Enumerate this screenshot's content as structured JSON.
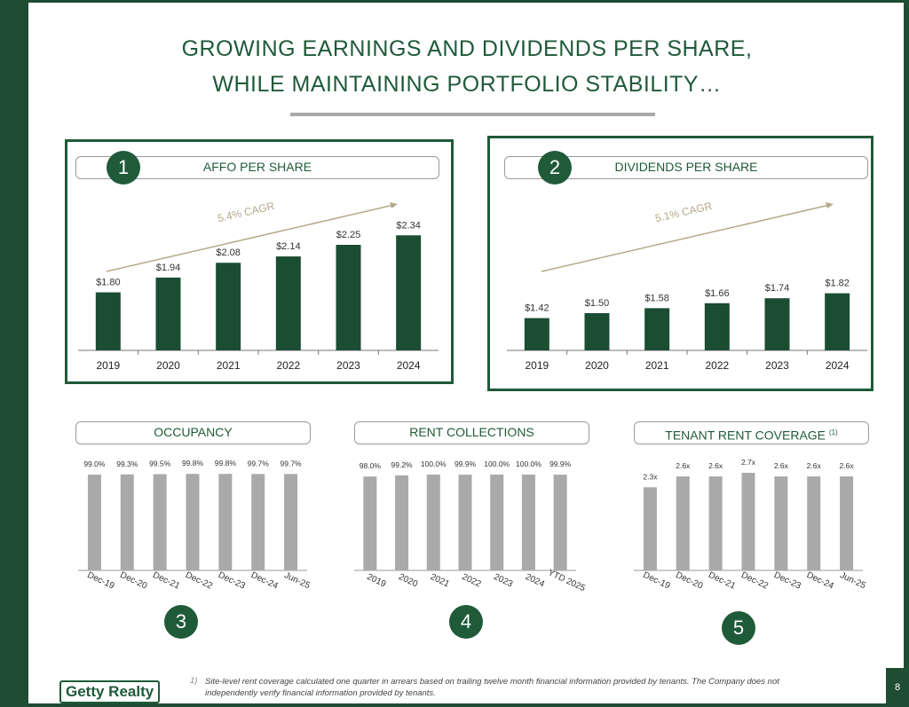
{
  "header": {
    "title_line1": "GROWING EARNINGS AND DIVIDENDS PER SHARE,",
    "title_line2": "WHILE MAINTAINING PORTFOLIO STABILITY…"
  },
  "footer": {
    "footnote_marker": "1)",
    "footnote": "Site-level rent coverage calculated one quarter in arrears based on trailing twelve month financial information provided by tenants.  The Company does not independently verify financial information provided by tenants.",
    "logo_text": "Getty Realty",
    "page_number": "8"
  },
  "colors": {
    "dark_green": "#1f5a39",
    "bar_green": "#1b4d33",
    "bar_gray": "#a9a9a9",
    "arrow": "#b5a98a"
  },
  "chart_data": [
    {
      "id": "affo",
      "badge": "1",
      "type": "bar",
      "title": "AFFO PER SHARE",
      "categories": [
        "2019",
        "2020",
        "2021",
        "2022",
        "2023",
        "2024"
      ],
      "values": [
        1.8,
        1.94,
        2.08,
        2.14,
        2.25,
        2.34
      ],
      "value_labels": [
        "$1.80",
        "$1.94",
        "$2.08",
        "$2.14",
        "$2.25",
        "$2.34"
      ],
      "annotation": "5.4% CAGR"
    },
    {
      "id": "dividends",
      "badge": "2",
      "type": "bar",
      "title": "DIVIDENDS PER SHARE",
      "categories": [
        "2019",
        "2020",
        "2021",
        "2022",
        "2023",
        "2024"
      ],
      "values": [
        1.42,
        1.5,
        1.58,
        1.66,
        1.74,
        1.82
      ],
      "value_labels": [
        "$1.42",
        "$1.50",
        "$1.58",
        "$1.66",
        "$1.74",
        "$1.82"
      ],
      "annotation": "5.1% CAGR"
    },
    {
      "id": "occupancy",
      "badge": "3",
      "type": "bar",
      "title": "OCCUPANCY",
      "categories": [
        "Dec-19",
        "Dec-20",
        "Dec-21",
        "Dec-22",
        "Dec-23",
        "Dec-24",
        "Jun-25"
      ],
      "values": [
        99.0,
        99.3,
        99.5,
        99.8,
        99.8,
        99.7,
        99.7
      ],
      "value_labels": [
        "99.0%",
        "99.3%",
        "99.5%",
        "99.8%",
        "99.8%",
        "99.7%",
        "99.7%"
      ]
    },
    {
      "id": "rent_collections",
      "badge": "4",
      "type": "bar",
      "title": "RENT COLLECTIONS",
      "categories": [
        "2019",
        "2020",
        "2021",
        "2022",
        "2023",
        "2024",
        "YTD 2025"
      ],
      "values": [
        98.0,
        99.2,
        100.0,
        99.9,
        100.0,
        100.0,
        99.9
      ],
      "value_labels": [
        "98.0%",
        "99.2%",
        "100.0%",
        "99.9%",
        "100.0%",
        "100.0%",
        "99.9%"
      ]
    },
    {
      "id": "coverage",
      "badge": "5",
      "type": "bar",
      "title": "TENANT RENT COVERAGE",
      "title_superscript": "(1)",
      "categories": [
        "Dec-19",
        "Dec-20",
        "Dec-21",
        "Dec-22",
        "Dec-23",
        "Dec-24",
        "Jun-25"
      ],
      "values": [
        2.3,
        2.6,
        2.6,
        2.7,
        2.6,
        2.6,
        2.6
      ],
      "value_labels": [
        "2.3x",
        "2.6x",
        "2.6x",
        "2.7x",
        "2.6x",
        "2.6x",
        "2.6x"
      ]
    }
  ]
}
